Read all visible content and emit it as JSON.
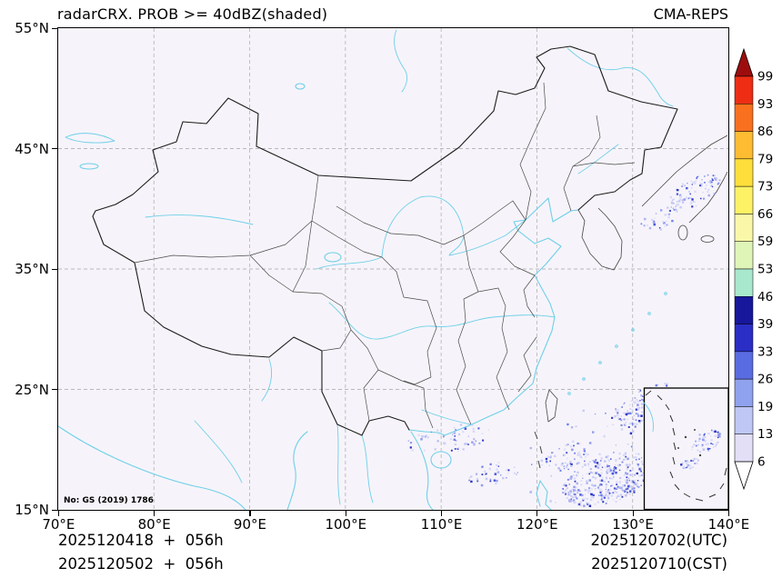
{
  "header": {
    "title": "radarCRX. PROB >= 40dBZ(shaded)",
    "source": "CMA-REPS"
  },
  "map": {
    "license": "No: GS (2019) 1786"
  },
  "axes": {
    "x_ticks": [
      "70°E",
      "80°E",
      "90°E",
      "100°E",
      "110°E",
      "120°E",
      "130°E",
      "140°E"
    ],
    "y_ticks": [
      "55°N",
      "45°N",
      "35°N",
      "25°N",
      "15°N"
    ]
  },
  "footer": {
    "init_utc": "2025120418  +  056h",
    "init_cst": "2025120502  +  056h",
    "valid_utc": "2025120702(UTC)",
    "valid_cst": "2025120710(CST)"
  },
  "chart_data": {
    "type": "heatmap",
    "title": "radarCRX. PROB >= 40dBZ(shaded)",
    "model": "CMA-REPS",
    "variable": "Ensemble probability of radar composite reflectivity >= 40 dBZ",
    "units": "%",
    "projection": "lat-lon map of China with South China Sea inset",
    "x_axis": {
      "min": 70,
      "max": 140,
      "tick_step": 10,
      "suffix": "°E"
    },
    "y_axis": {
      "min": 15,
      "max": 55,
      "tick_step": 10,
      "suffix": "°N"
    },
    "grid": "dashed gray every 10 degrees",
    "init_time_utc": "2025120418",
    "init_time_cst": "2025120502",
    "lead_hours": "056h",
    "valid_time_utc": "2025120702",
    "valid_time_cst": "2025120710",
    "colorbar": {
      "orientation": "vertical-right, pointed ends",
      "levels": [
        6,
        13,
        19,
        26,
        33,
        39,
        46,
        53,
        59,
        66,
        73,
        79,
        86,
        93,
        99
      ],
      "colors_bottom_to_top": [
        "#ffffff",
        "#e2dff7",
        "#bfc7f3",
        "#8fa2ee",
        "#5a6ce2",
        "#2a2ec6",
        "#17179c",
        "#a8e8cc",
        "#dff5b8",
        "#faf8a8",
        "#fdf265",
        "#fede3a",
        "#fdbc32",
        "#f9711f",
        "#ee2e14",
        "#9e0d0e"
      ]
    },
    "shading_note": "Only scattered low-probability cells (~6-33%) appear: over the Philippine Sea southeast of Taiwan, a band east of the Ryukyus, along the south China coast near Hainan, over the Sea of Japan, and inside the South China Sea inset.",
    "speckles": {
      "palette": [
        "#d8d8f8",
        "#c6c9f5",
        "#adb3f1",
        "#939cee",
        "#7280e8",
        "#4a58da",
        "#2a35c2"
      ],
      "clusters": [
        {
          "x": 605,
          "y": 497,
          "rx": 53,
          "ry": 26,
          "rot": -18,
          "n": 320,
          "layer": "map"
        },
        {
          "x": 560,
          "y": 472,
          "rx": 25,
          "ry": 14,
          "rot": -20,
          "n": 60,
          "layer": "map"
        },
        {
          "x": 641,
          "y": 416,
          "rx": 40,
          "ry": 15,
          "rot": -35,
          "n": 130,
          "layer": "map"
        },
        {
          "x": 700,
          "y": 180,
          "rx": 33,
          "ry": 15,
          "rot": -30,
          "n": 95,
          "layer": "map"
        },
        {
          "x": 660,
          "y": 212,
          "rx": 24,
          "ry": 11,
          "rot": -30,
          "n": 30,
          "layer": "map"
        },
        {
          "x": 430,
          "y": 452,
          "rx": 47,
          "ry": 15,
          "rot": -8,
          "n": 60,
          "layer": "map"
        },
        {
          "x": 480,
          "y": 490,
          "rx": 29,
          "ry": 13,
          "rot": -15,
          "n": 40,
          "layer": "map"
        },
        {
          "x": 615,
          "y": 505,
          "rx": 22,
          "ry": 12,
          "rot": -10,
          "n": 45,
          "layer": "map"
        },
        {
          "x": 667,
          "y": 432,
          "rx": 16,
          "ry": 9,
          "rot": -30,
          "n": 30,
          "layer": "map"
        },
        {
          "x": 600,
          "y": 470,
          "rx": 95,
          "ry": 55,
          "rot": -15,
          "n": 55,
          "layer": "map"
        },
        {
          "x": 712,
          "y": 455,
          "rx": 19,
          "ry": 11,
          "rot": -25,
          "n": 55,
          "layer": "inset"
        },
        {
          "x": 694,
          "y": 480,
          "rx": 11,
          "ry": 7,
          "rot": -20,
          "n": 25,
          "layer": "inset"
        }
      ]
    }
  }
}
